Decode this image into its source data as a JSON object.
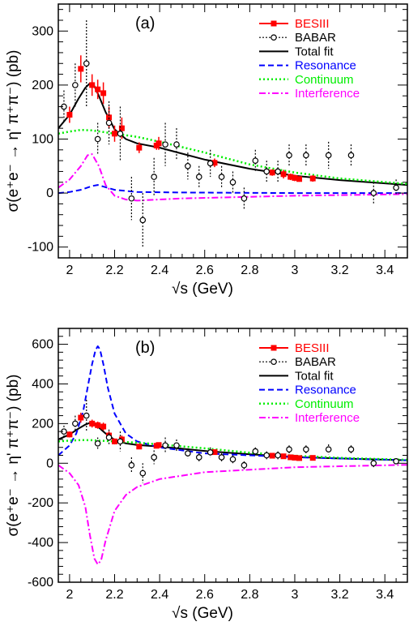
{
  "chart_data": [
    {
      "panel_label": "(a)",
      "type": "scatter",
      "xlabel": "√s (GeV)",
      "ylabel": "σ(e⁺e⁻ → η' π⁺π⁻) (pb)",
      "xlim": [
        1.95,
        3.5
      ],
      "ylim": [
        -120,
        350
      ],
      "x_ticks": [
        2,
        2.2,
        2.4,
        2.6,
        2.8,
        3,
        3.2,
        3.4
      ],
      "x_tick_labels": [
        "2",
        "2.2",
        "2.4",
        "2.6",
        "2.8",
        "3",
        "3.2",
        "3.4"
      ],
      "y_ticks": [
        -100,
        0,
        100,
        200,
        300
      ],
      "y_tick_labels": [
        "-100",
        "0",
        "100",
        "200",
        "300"
      ],
      "legend": {
        "placement": "top-right",
        "entries": [
          {
            "label": "BESIII",
            "color": "#ff0000",
            "style": "marker-square"
          },
          {
            "label": "BABAR",
            "color": "#000000",
            "style": "marker-open-circle-dotted"
          },
          {
            "label": "Total fit",
            "color": "#000000",
            "style": "solid"
          },
          {
            "label": "Resonance",
            "color": "#0000ff",
            "style": "dashed"
          },
          {
            "label": "Continuum",
            "color": "#00ee00",
            "style": "dotted"
          },
          {
            "label": "Interference",
            "color": "#ff00ff",
            "style": "dashdot"
          }
        ]
      },
      "series": [
        {
          "name": "BESIII",
          "kind": "points",
          "x": [
            2.0,
            2.05,
            2.1,
            2.125,
            2.15,
            2.175,
            2.2,
            2.232,
            2.309,
            2.386,
            2.396,
            2.644,
            2.9,
            2.95,
            2.981,
            3.0,
            3.02,
            3.08
          ],
          "y": [
            145,
            230,
            200,
            192,
            185,
            140,
            110,
            120,
            84,
            88,
            92,
            56,
            38,
            35,
            30,
            28,
            26,
            27
          ],
          "err": [
            15,
            25,
            20,
            18,
            20,
            20,
            15,
            20,
            10,
            8,
            12,
            8,
            6,
            8,
            6,
            6,
            5,
            6
          ]
        },
        {
          "name": "BABAR",
          "kind": "points",
          "x": [
            1.975,
            2.025,
            2.075,
            2.125,
            2.175,
            2.225,
            2.275,
            2.325,
            2.375,
            2.425,
            2.475,
            2.525,
            2.575,
            2.625,
            2.675,
            2.725,
            2.775,
            2.825,
            2.875,
            2.925,
            2.975,
            3.05,
            3.15,
            3.25,
            3.35,
            3.45
          ],
          "y": [
            160,
            200,
            240,
            100,
            130,
            110,
            -10,
            -50,
            30,
            90,
            90,
            50,
            30,
            55,
            30,
            20,
            -10,
            60,
            40,
            40,
            70,
            70,
            70,
            70,
            0,
            10
          ],
          "err": [
            30,
            40,
            80,
            30,
            40,
            50,
            40,
            50,
            35,
            40,
            30,
            25,
            20,
            25,
            20,
            20,
            20,
            20,
            20,
            20,
            20,
            20,
            25,
            20,
            20,
            15
          ]
        },
        {
          "name": "Total fit",
          "kind": "curve",
          "x": [
            1.95,
            2.0,
            2.04,
            2.07,
            2.09,
            2.11,
            2.13,
            2.16,
            2.2,
            2.25,
            2.3,
            2.4,
            2.5,
            2.6,
            2.8,
            3.0,
            3.2,
            3.5
          ],
          "y": [
            120,
            145,
            175,
            195,
            203,
            198,
            180,
            150,
            118,
            100,
            92,
            84,
            73,
            62,
            45,
            32,
            24,
            15
          ]
        },
        {
          "name": "Resonance",
          "kind": "curve",
          "x": [
            1.95,
            2.0,
            2.05,
            2.1,
            2.125,
            2.15,
            2.2,
            2.3,
            2.5,
            3.0,
            3.5
          ],
          "y": [
            0,
            2,
            6,
            13,
            15,
            12,
            6,
            2,
            1,
            0,
            0
          ]
        },
        {
          "name": "Continuum",
          "kind": "curve",
          "x": [
            1.95,
            2.0,
            2.05,
            2.1,
            2.2,
            2.3,
            2.4,
            2.6,
            2.8,
            3.0,
            3.2,
            3.5
          ],
          "y": [
            110,
            114,
            117,
            116,
            110,
            104,
            95,
            75,
            53,
            38,
            27,
            17
          ]
        },
        {
          "name": "Interference",
          "kind": "curve",
          "x": [
            1.95,
            2.0,
            2.05,
            2.08,
            2.1,
            2.13,
            2.16,
            2.2,
            2.25,
            2.3,
            2.5,
            3.0,
            3.5
          ],
          "y": [
            10,
            25,
            50,
            70,
            72,
            50,
            15,
            -5,
            -12,
            -14,
            -10,
            -5,
            -2
          ]
        }
      ]
    },
    {
      "panel_label": "(b)",
      "type": "scatter",
      "xlabel": "√s (GeV)",
      "ylabel": "σ(e⁺e⁻ → η' π⁺π⁻) (pb)",
      "xlim": [
        1.95,
        3.5
      ],
      "ylim": [
        -600,
        680
      ],
      "x_ticks": [
        2,
        2.2,
        2.4,
        2.6,
        2.8,
        3,
        3.2,
        3.4
      ],
      "x_tick_labels": [
        "2",
        "2.2",
        "2.4",
        "2.6",
        "2.8",
        "3",
        "3.2",
        "3.4"
      ],
      "y_ticks": [
        -600,
        -400,
        -200,
        0,
        200,
        400,
        600
      ],
      "y_tick_labels": [
        "-600",
        "-400",
        "-200",
        "0",
        "200",
        "400",
        "600"
      ],
      "legend": {
        "placement": "top-right",
        "entries": [
          {
            "label": "BESIII",
            "color": "#ff0000",
            "style": "marker-square"
          },
          {
            "label": "BABAR",
            "color": "#000000",
            "style": "marker-open-circle-dotted"
          },
          {
            "label": "Total fit",
            "color": "#000000",
            "style": "solid"
          },
          {
            "label": "Resonance",
            "color": "#0000ff",
            "style": "dashed"
          },
          {
            "label": "Continuum",
            "color": "#00ee00",
            "style": "dotted"
          },
          {
            "label": "Interference",
            "color": "#ff00ff",
            "style": "dashdot"
          }
        ]
      },
      "series": [
        {
          "name": "BESIII",
          "kind": "points",
          "x": [
            2.0,
            2.05,
            2.1,
            2.125,
            2.15,
            2.175,
            2.2,
            2.232,
            2.309,
            2.386,
            2.396,
            2.644,
            2.9,
            2.95,
            2.981,
            3.0,
            3.02,
            3.08
          ],
          "y": [
            145,
            230,
            200,
            192,
            185,
            140,
            110,
            120,
            84,
            88,
            92,
            56,
            38,
            35,
            30,
            28,
            26,
            27
          ],
          "err": [
            15,
            25,
            20,
            18,
            20,
            20,
            15,
            20,
            10,
            8,
            12,
            8,
            6,
            8,
            6,
            6,
            5,
            6
          ]
        },
        {
          "name": "BABAR",
          "kind": "points",
          "x": [
            1.975,
            2.025,
            2.075,
            2.125,
            2.175,
            2.225,
            2.275,
            2.325,
            2.375,
            2.425,
            2.475,
            2.525,
            2.575,
            2.625,
            2.675,
            2.725,
            2.775,
            2.825,
            2.875,
            2.925,
            2.975,
            3.05,
            3.15,
            3.25,
            3.35,
            3.45
          ],
          "y": [
            160,
            200,
            240,
            100,
            130,
            110,
            -10,
            -50,
            30,
            90,
            90,
            50,
            30,
            55,
            30,
            20,
            -10,
            60,
            40,
            40,
            70,
            70,
            70,
            70,
            0,
            10
          ],
          "err": [
            30,
            40,
            80,
            30,
            40,
            50,
            40,
            50,
            35,
            40,
            30,
            25,
            20,
            25,
            20,
            20,
            20,
            20,
            20,
            20,
            20,
            20,
            25,
            20,
            20,
            15
          ]
        },
        {
          "name": "Total fit",
          "kind": "curve",
          "x": [
            1.95,
            2.0,
            2.04,
            2.07,
            2.09,
            2.11,
            2.13,
            2.16,
            2.2,
            2.25,
            2.3,
            2.4,
            2.5,
            2.6,
            2.8,
            3.0,
            3.2,
            3.5
          ],
          "y": [
            120,
            145,
            175,
            195,
            203,
            198,
            180,
            150,
            118,
            100,
            92,
            84,
            73,
            62,
            45,
            32,
            24,
            15
          ]
        },
        {
          "name": "Resonance",
          "kind": "curve",
          "x": [
            1.95,
            2.0,
            2.03,
            2.06,
            2.08,
            2.1,
            2.115,
            2.125,
            2.135,
            2.15,
            2.17,
            2.2,
            2.25,
            2.3,
            2.4,
            2.6,
            3.0,
            3.5
          ],
          "y": [
            40,
            90,
            150,
            260,
            380,
            500,
            570,
            590,
            575,
            500,
            380,
            250,
            150,
            110,
            80,
            50,
            30,
            15
          ]
        },
        {
          "name": "Continuum",
          "kind": "curve",
          "x": [
            1.95,
            2.0,
            2.05,
            2.1,
            2.2,
            2.3,
            2.4,
            2.6,
            2.8,
            3.0,
            3.2,
            3.5
          ],
          "y": [
            110,
            114,
            117,
            116,
            110,
            104,
            95,
            75,
            53,
            38,
            27,
            17
          ]
        },
        {
          "name": "Interference",
          "kind": "curve",
          "x": [
            1.95,
            2.0,
            2.04,
            2.07,
            2.09,
            2.11,
            2.125,
            2.14,
            2.16,
            2.2,
            2.25,
            2.3,
            2.4,
            2.6,
            3.0,
            3.5
          ],
          "y": [
            -10,
            -50,
            -110,
            -220,
            -360,
            -480,
            -510,
            -490,
            -390,
            -240,
            -160,
            -120,
            -80,
            -45,
            -20,
            -8
          ]
        }
      ]
    }
  ]
}
